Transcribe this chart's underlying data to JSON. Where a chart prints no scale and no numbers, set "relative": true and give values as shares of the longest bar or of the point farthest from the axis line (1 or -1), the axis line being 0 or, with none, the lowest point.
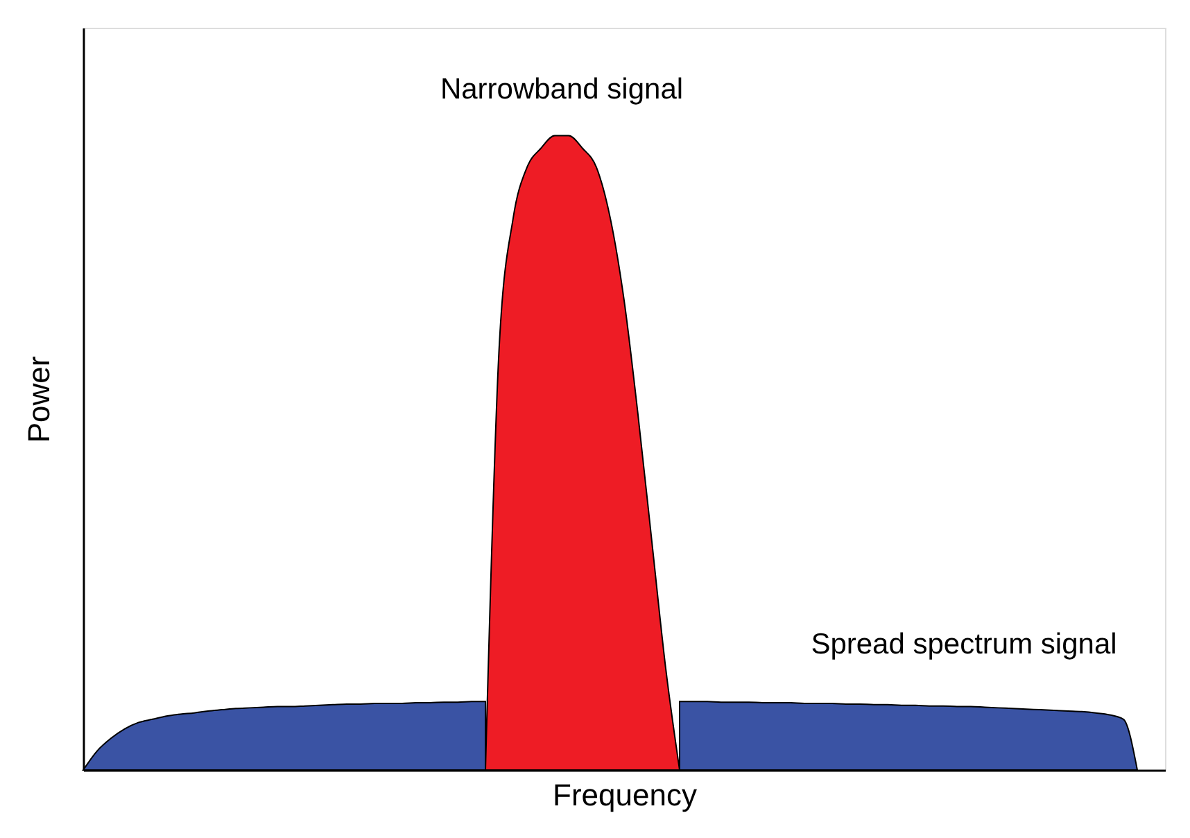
{
  "chart_data": {
    "type": "area",
    "relative": true,
    "xlabel": "Frequency",
    "ylabel": "Power",
    "categories": [
      null,
      null,
      null,
      null,
      null,
      null,
      null,
      null,
      null,
      null,
      null,
      null,
      null,
      null,
      null,
      null,
      null,
      null,
      null,
      null,
      null,
      null,
      null,
      null,
      null,
      null,
      null,
      null,
      null,
      null,
      null,
      null,
      null,
      null,
      null,
      null,
      null,
      null,
      null,
      null,
      null,
      null,
      null,
      null,
      null,
      null,
      null,
      null,
      null,
      null,
      null,
      null,
      null,
      null,
      null,
      null,
      null,
      null,
      null,
      null,
      null,
      null,
      null,
      null,
      null,
      null,
      null,
      null,
      null,
      null,
      null,
      null,
      null,
      null,
      null,
      null,
      null,
      null,
      null
    ],
    "series": [
      {
        "name": "Spread spectrum signal",
        "color": "#3a53a4",
        "values": [
          0,
          0.03,
          0.05,
          0.065,
          0.075,
          0.08,
          0.085,
          0.088,
          0.09,
          0.093,
          0.095,
          0.097,
          0.098,
          0.099,
          0.1,
          0.1,
          0.101,
          0.102,
          0.103,
          0.104,
          0.104,
          0.105,
          0.105,
          0.105,
          0.106,
          0.106,
          0.107,
          0.107,
          0.108,
          0.108,
          null,
          null,
          null,
          null,
          null,
          null,
          null,
          null,
          null,
          null,
          null,
          null,
          null,
          0.108,
          0.108,
          0.108,
          0.107,
          0.107,
          0.107,
          0.106,
          0.106,
          0.106,
          0.105,
          0.105,
          0.105,
          0.104,
          0.104,
          0.103,
          0.103,
          0.102,
          0.102,
          0.101,
          0.101,
          0.1,
          0.1,
          0.099,
          0.098,
          0.097,
          0.096,
          0.095,
          0.094,
          0.093,
          0.092,
          0.09,
          0.087,
          0.08,
          0.0,
          null,
          null
        ]
      },
      {
        "name": "Narrowband signal",
        "color": "#ee1c25",
        "values": [
          null,
          null,
          null,
          null,
          null,
          null,
          null,
          null,
          null,
          null,
          null,
          null,
          null,
          null,
          null,
          null,
          null,
          null,
          null,
          null,
          null,
          null,
          null,
          null,
          null,
          null,
          null,
          null,
          null,
          0,
          0.67,
          0.87,
          0.95,
          0.98,
          1.0,
          1.0,
          0.98,
          0.95,
          0.87,
          0.74,
          0.56,
          0.36,
          0.16,
          0,
          null,
          null,
          null,
          null,
          null,
          null,
          null,
          null,
          null,
          null,
          null,
          null,
          null,
          null,
          null,
          null,
          null,
          null,
          null,
          null,
          null,
          null,
          null,
          null,
          null,
          null,
          null,
          null,
          null,
          null,
          null,
          null,
          null,
          null,
          null
        ]
      }
    ]
  }
}
